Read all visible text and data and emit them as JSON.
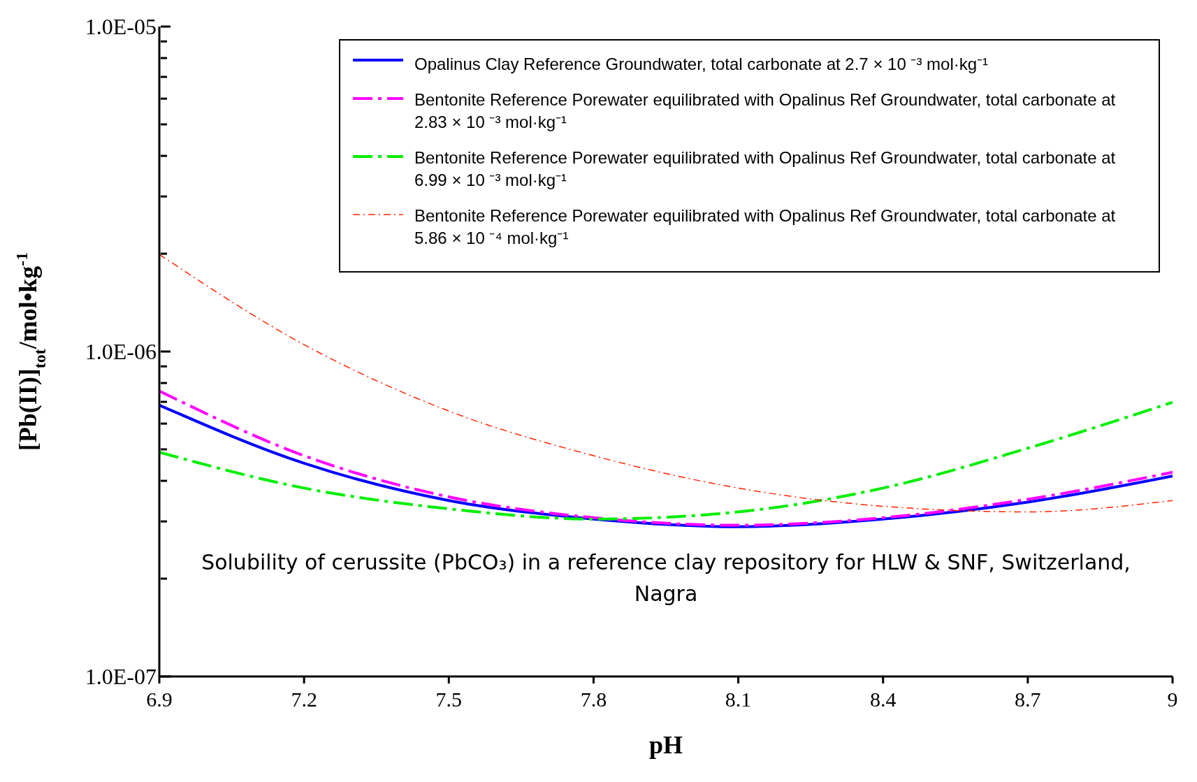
{
  "chart_data": {
    "type": "line",
    "xlabel": "pH",
    "ylabel": "[Pb(II)]$_{tot}$/mol•kg$^{-1}$",
    "x": [
      6.9,
      7.2,
      7.5,
      7.8,
      8.1,
      8.4,
      8.7,
      9
    ],
    "series": [
      {
        "name": "Opalinus Clay Reference Groundwater, total carbonate at 2.7 × 10 ⁻³ mol·kg⁻¹",
        "color": "#0000ff",
        "line_style": "solid",
        "values": [
          6.84e-07,
          4.53e-07,
          3.48e-07,
          3.05e-07,
          2.89e-07,
          3.05e-07,
          3.44e-07,
          4.14e-07
        ]
      },
      {
        "name": "Bentonite Reference Porewater equilibrated with Opalinus Ref Groundwater, total carbonate at 2.83 × 10 ⁻³ mol·kg⁻¹",
        "color": "#ff00ff",
        "line_style": "dashed",
        "values": [
          7.56e-07,
          4.78e-07,
          3.57e-07,
          3.08e-07,
          2.92e-07,
          3.08e-07,
          3.51e-07,
          4.25e-07
        ]
      },
      {
        "name": "Bentonite Reference Porewater equilibrated with Opalinus Ref Groundwater, total carbonate at 6.99 × 10 ⁻³ mol·kg⁻¹",
        "color": "#00ee00",
        "line_style": "dashed",
        "values": [
          4.9e-07,
          3.8e-07,
          3.28e-07,
          3.05e-07,
          3.21e-07,
          3.8e-07,
          5.04e-07,
          6.98e-07
        ]
      },
      {
        "name": "Bentonite Reference Porewater equilibrated with Opalinus Ref Groundwater, total carbonate at 5.86 × 10 ⁻⁴ mol·kg⁻¹",
        "color": "#ff2200",
        "line_style": "dashed",
        "values": [
          1.99e-06,
          1.05e-06,
          6.56e-07,
          4.78e-07,
          3.8e-07,
          3.34e-07,
          3.21e-07,
          3.48e-07
        ]
      }
    ],
    "xlim": [
      6.9,
      9
    ],
    "xticks": [
      6.9,
      7.2,
      7.5,
      7.8,
      8.1,
      8.4,
      8.7,
      9
    ],
    "ylim": [
      1e-07,
      1e-05
    ],
    "yticks": [
      {
        "value": 1e-07,
        "label": "1.0E-07"
      },
      {
        "value": 2e-07,
        "label": null
      },
      {
        "value": 3e-07,
        "label": null
      },
      {
        "value": 4e-07,
        "label": null
      },
      {
        "value": 5e-07,
        "label": null
      },
      {
        "value": 6e-07,
        "label": null
      },
      {
        "value": 7e-07,
        "label": null
      },
      {
        "value": 8e-07,
        "label": null
      },
      {
        "value": 9e-07,
        "label": null
      },
      {
        "value": 1e-06,
        "label": "1.0E-06"
      },
      {
        "value": 2e-06,
        "label": null
      },
      {
        "value": 3e-06,
        "label": null
      },
      {
        "value": 4e-06,
        "label": null
      },
      {
        "value": 5e-06,
        "label": null
      },
      {
        "value": 6e-06,
        "label": null
      },
      {
        "value": 7e-06,
        "label": null
      },
      {
        "value": 8e-06,
        "label": null
      },
      {
        "value": 9e-06,
        "label": null
      },
      {
        "value": 1e-05,
        "label": "1.0E-05"
      }
    ],
    "log": "y",
    "grid": false,
    "legend": "top right",
    "marker": "none",
    "annotations": [
      "Solubility of cerussite (PbCO₃) in a reference  clay repository for HLW & SNF, Switzerland, Nagra"
    ]
  }
}
